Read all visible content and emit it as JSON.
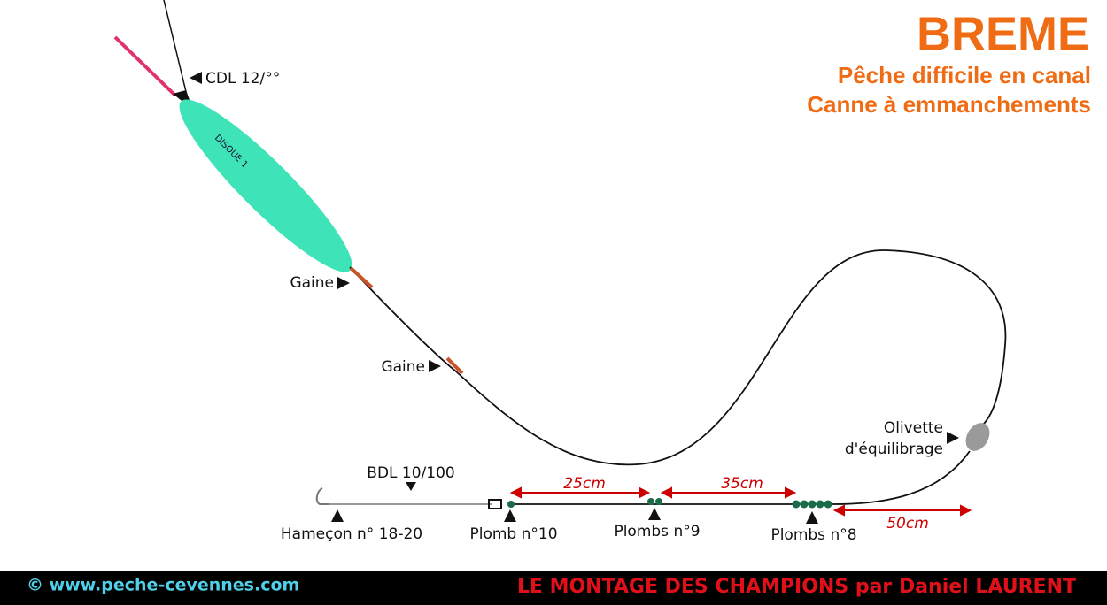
{
  "header": {
    "title": "BREME",
    "subtitle": [
      "Pêche difficile en canal",
      "Canne à emmanchements"
    ]
  },
  "float": {
    "brand": "DISQUE 1"
  },
  "labels": {
    "mainline": "CDL 12/°°",
    "sleeve_1": "Gaine",
    "sleeve_2": "Gaine",
    "olivette": [
      "Olivette",
      "d'équilibrage"
    ],
    "hooklength": "BDL 10/100",
    "hook": "Hameçon n° 18-20",
    "shot_10": "Plomb n°10",
    "shot_9": "Plombs n°9",
    "shot_8": "Plombs n°8"
  },
  "distances": [
    "25cm",
    "35cm",
    "50cm"
  ],
  "footer": {
    "website": "© www.peche-cevennes.com",
    "credit": "LE MONTAGE DES CHAMPIONS par Daniel LAURENT"
  }
}
